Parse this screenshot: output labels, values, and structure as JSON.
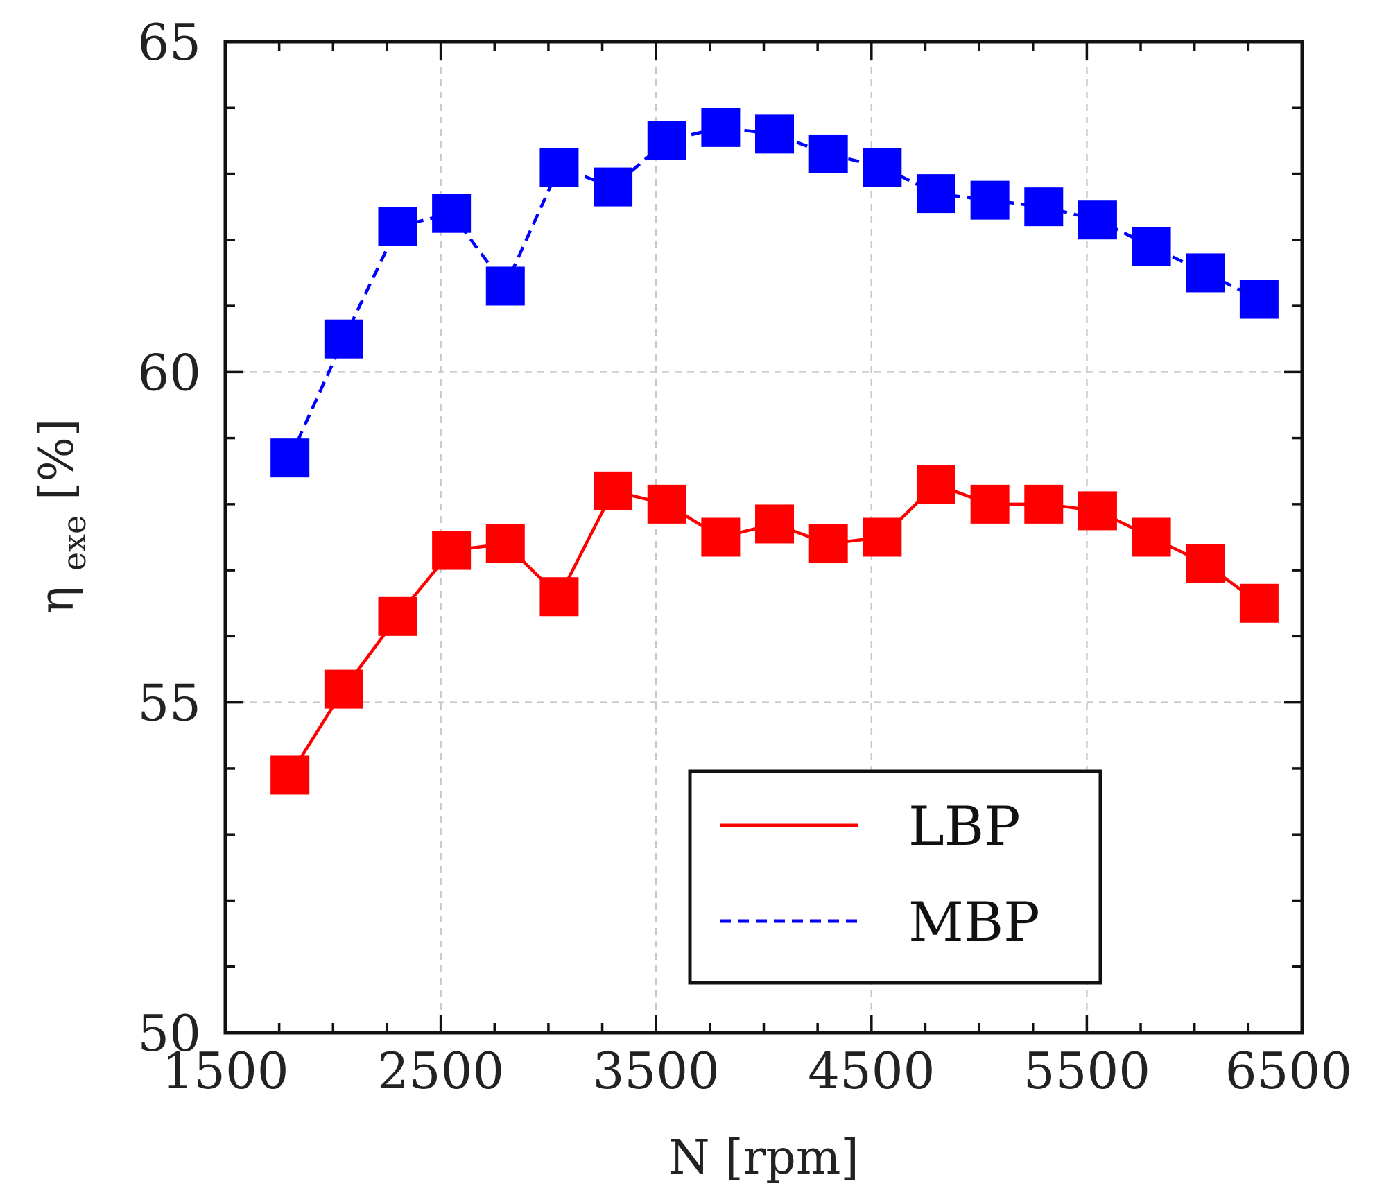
{
  "chart_data": {
    "type": "line",
    "title": "",
    "xlabel": "N [rpm]",
    "ylabel_symbol": "η",
    "ylabel_subscript": "exe",
    "ylabel_unit": "[%]",
    "xlim": [
      1500,
      6500
    ],
    "ylim": [
      50,
      65
    ],
    "xticks": [
      1500,
      2500,
      3500,
      4500,
      5500,
      6500
    ],
    "yticks": [
      50,
      55,
      60,
      65
    ],
    "x_minor_step": 250,
    "y_minor_step": 1,
    "grid": true,
    "legend_position": "bottom-right",
    "x": [
      1800,
      2050,
      2300,
      2550,
      2800,
      3050,
      3300,
      3550,
      3800,
      4050,
      4300,
      4550,
      4800,
      5050,
      5300,
      5550,
      5800,
      6050,
      6300
    ],
    "series": [
      {
        "name": "LBP",
        "color": "#ff0000",
        "line_style": "solid",
        "marker": "square",
        "values": [
          53.9,
          55.2,
          56.3,
          57.3,
          57.4,
          56.6,
          58.2,
          58.0,
          57.5,
          57.7,
          57.4,
          57.5,
          58.3,
          58.0,
          58.0,
          57.9,
          57.5,
          57.1,
          56.5
        ]
      },
      {
        "name": "MBP",
        "color": "#0000ff",
        "line_style": "dashed",
        "marker": "square",
        "values": [
          58.7,
          60.5,
          62.2,
          62.4,
          61.3,
          63.1,
          62.8,
          63.5,
          63.7,
          63.6,
          63.3,
          63.1,
          62.7,
          62.6,
          62.5,
          62.3,
          61.9,
          61.5,
          61.1
        ]
      }
    ]
  }
}
